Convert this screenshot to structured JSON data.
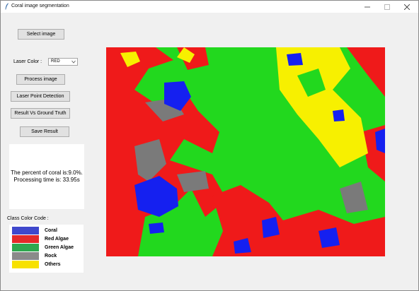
{
  "window": {
    "title": "Coral image segmentation"
  },
  "controls": {
    "select_image": "Select image",
    "laser_color_label": "Laser Color :",
    "laser_color_value": "RED",
    "process_image": "Process image",
    "laser_point_detection": "Laser Point Detection",
    "result_vs_ground_truth": "Result Vs Ground Truth",
    "save_result": "Save Result"
  },
  "result": {
    "coral_percent": "The percent of coral is:9.0%.",
    "processing_time": "Processing time is: 33.95s"
  },
  "legend": {
    "title": "Class Color Code :",
    "items": [
      {
        "label": "Coral",
        "color": "#3f48cc"
      },
      {
        "label": "Red Algae",
        "color": "#e42a2a"
      },
      {
        "label": "Green Algae",
        "color": "#2fa84f"
      },
      {
        "label": "Rock",
        "color": "#8a8a8a"
      },
      {
        "label": "Others",
        "color": "#f7e100"
      }
    ]
  },
  "segmentation_colors": {
    "coral": "#1520f0",
    "red_algae": "#ef1a1a",
    "green_algae": "#22d81e",
    "rock": "#7a7a7a",
    "others": "#f7f000"
  }
}
